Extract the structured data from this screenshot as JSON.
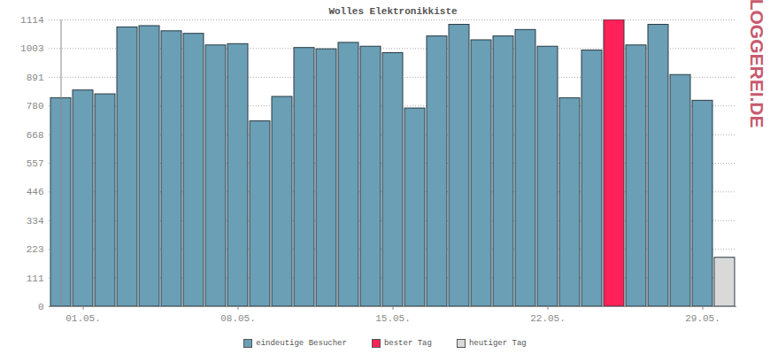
{
  "chart_data": {
    "type": "bar",
    "title": "Wolles Elektronikkiste",
    "annotations": [
      "BLOGGEREI.DE"
    ],
    "categories": [
      null,
      "01.05.",
      null,
      null,
      null,
      null,
      null,
      null,
      "08.05.",
      null,
      null,
      null,
      null,
      null,
      null,
      "15.05.",
      null,
      null,
      null,
      null,
      null,
      null,
      "22.05.",
      null,
      null,
      null,
      null,
      null,
      null,
      "29.05.",
      null
    ],
    "series": [
      {
        "name": "eindeutige Besucher",
        "color": "#6a9fb5",
        "values": [
          810,
          840,
          825,
          1085,
          1090,
          1070,
          1060,
          1015,
          1020,
          720,
          815,
          1005,
          1000,
          1025,
          1010,
          985,
          770,
          1050,
          1095,
          1035,
          1050,
          1075,
          1010,
          810,
          995,
          null,
          1015,
          1095,
          900,
          800,
          null
        ]
      },
      {
        "name": "bester Tag",
        "color": "#ff2157",
        "values": [
          null,
          null,
          null,
          null,
          null,
          null,
          null,
          null,
          null,
          null,
          null,
          null,
          null,
          null,
          null,
          null,
          null,
          null,
          null,
          null,
          null,
          null,
          null,
          null,
          null,
          1114,
          null,
          null,
          null,
          null,
          null
        ]
      },
      {
        "name": "heutiger Tag",
        "color": "#d9d9d9",
        "values": [
          null,
          null,
          null,
          null,
          null,
          null,
          null,
          null,
          null,
          null,
          null,
          null,
          null,
          null,
          null,
          null,
          null,
          null,
          null,
          null,
          null,
          null,
          null,
          null,
          null,
          null,
          null,
          null,
          null,
          null,
          190
        ]
      }
    ],
    "ylim": [
      0,
      1114
    ],
    "yticks": [
      0,
      111,
      223,
      334,
      446,
      557,
      668,
      780,
      891,
      1003,
      1114
    ],
    "grid": true,
    "legend": "bottom"
  }
}
